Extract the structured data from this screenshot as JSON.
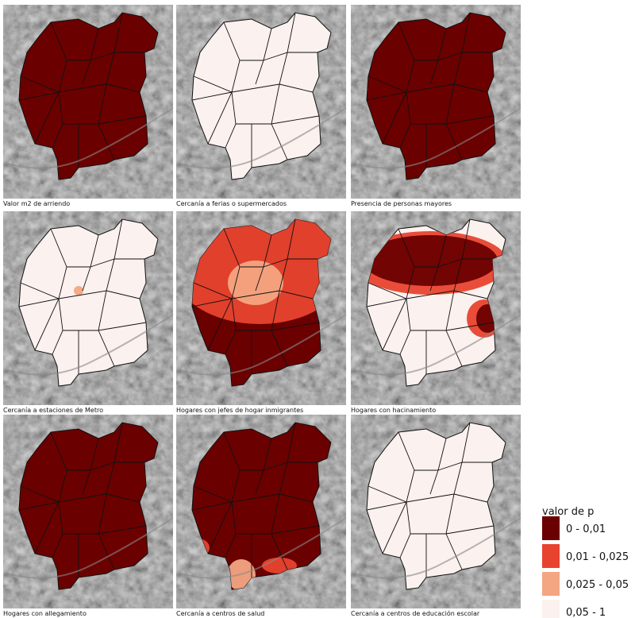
{
  "panels": [
    {
      "caption": "Valor m2 de arriendo"
    },
    {
      "caption": "Cercanía a ferias o supermercados"
    },
    {
      "caption": "Presencia de personas mayores"
    },
    {
      "caption": "Cercanía a estaciones de Metro"
    },
    {
      "caption": "Hogares con jefes de hogar inmigrantes"
    },
    {
      "caption": "Hogares con hacinamiento"
    },
    {
      "caption": "Hogares con allegamiento"
    },
    {
      "caption": "Cercanía a centros de salud"
    },
    {
      "caption": "Cercanía a centros de educación escolar"
    }
  ],
  "legend": {
    "title": "valor de p",
    "items": [
      {
        "label": "0 - 0,01",
        "color": "#6b0000"
      },
      {
        "label": "0,01 - 0,025",
        "color": "#e8432e"
      },
      {
        "label": "0,025 - 0,05",
        "color": "#f4a582"
      },
      {
        "label": "0,05 - 1",
        "color": "#fbf1ee"
      }
    ]
  }
}
